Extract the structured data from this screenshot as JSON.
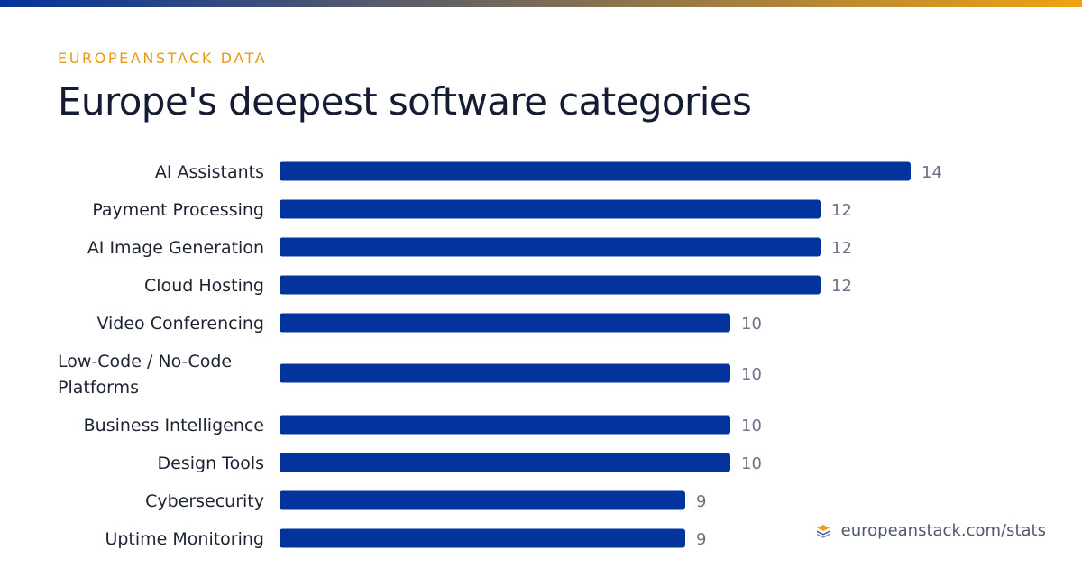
{
  "header": {
    "eyebrow": "EUROPEANSTACK DATA",
    "title": "Europe's deepest software categories"
  },
  "footer": {
    "icon": "layers-icon",
    "text": "europeanstack.com/stats"
  },
  "colors": {
    "bar": "#03339c",
    "accent": "#e59a16",
    "gradient_start": "#03339c",
    "gradient_end": "#f0a312"
  },
  "chart_data": {
    "type": "bar",
    "orientation": "horizontal",
    "categories": [
      "AI Assistants",
      "Payment Processing",
      "AI Image Generation",
      "Cloud Hosting",
      "Video Conferencing",
      "Low-Code / No-Code Platforms",
      "Business Intelligence",
      "Design Tools",
      "Cybersecurity",
      "Uptime Monitoring"
    ],
    "values": [
      14,
      12,
      12,
      12,
      10,
      10,
      10,
      10,
      9,
      9
    ],
    "title": "Europe's deepest software categories",
    "xlabel": "",
    "ylabel": "",
    "xlim": [
      0,
      14
    ],
    "grid": false,
    "legend": "none"
  }
}
